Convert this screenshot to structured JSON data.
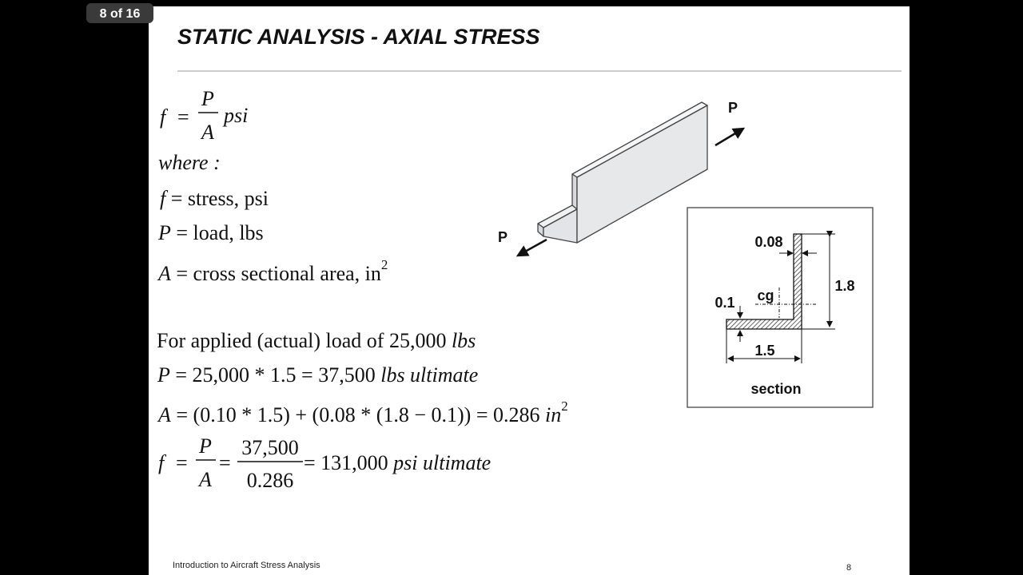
{
  "viewer": {
    "page_indicator": "8 of 16"
  },
  "slide": {
    "title": "STATIC ANALYSIS - AXIAL STRESS",
    "formula": {
      "lhs": "f",
      "equals": "=",
      "numerator": "P",
      "denominator": "A",
      "unit": "psi"
    },
    "where": "where :",
    "definitions": [
      {
        "symbol": "f",
        "text": "= stress, psi"
      },
      {
        "symbol": "P",
        "text": "= load, lbs"
      },
      {
        "symbol": "A",
        "text": "= cross sectional area, in",
        "superscript": "2"
      }
    ],
    "calculation": {
      "load_line": {
        "text": "For applied (actual) load of 25,000 ",
        "unit": "lbs"
      },
      "ultimate_line": {
        "symbol": "P",
        "text": "= 25,000 * 1.5 = 37,500 ",
        "unit": "lbs ultimate"
      },
      "area_line": {
        "symbol": "A",
        "text": "= (0.10 * 1.5) + (0.08 * (1.8 − 0.1)) = 0.286 ",
        "unit": "in",
        "superscript": "2"
      },
      "stress_line": {
        "symbol": "f",
        "equals": "=",
        "numerator": "P",
        "denominator": "A",
        "equals2": "=",
        "numerator2": "37,500",
        "denominator2": "0.286",
        "result": "= 131,000 ",
        "unit": "psi",
        "suffix": "ultimate"
      }
    },
    "diagram": {
      "load_labels": [
        "P",
        "P"
      ],
      "section": {
        "thickness_web": "0.08",
        "height": "1.8",
        "thickness_flange": "0.1",
        "centroid": "cg",
        "width": "1.5",
        "caption": "section"
      }
    },
    "footer": {
      "text": "Introduction to Aircraft Stress Analysis",
      "page_number": "8"
    }
  }
}
